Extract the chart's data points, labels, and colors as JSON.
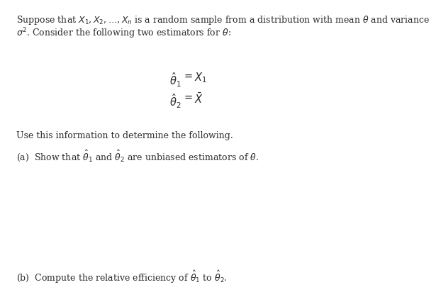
{
  "bg_color": "#ffffff",
  "text_color": "#2a2a2a",
  "figsize": [
    6.15,
    4.19
  ],
  "dpi": 100,
  "line1": "Suppose that $X_1, X_2, \\ldots, X_n$ is a random sample from a distribution with mean $\\theta$ and variance",
  "line2": "$\\sigma^2$. Consider the following two estimators for $\\theta$:",
  "eq1_left": "$\\hat{\\theta}_1$",
  "eq1_mid": "$=$",
  "eq1_right": "$X_1$",
  "eq2_left": "$\\hat{\\theta}_2$",
  "eq2_mid": "$=$",
  "eq2_right": "$\\bar{X}$",
  "use_line": "Use this information to determine the following.",
  "part_a": "(a)  Show that $\\hat{\\theta}_1$ and $\\hat{\\theta}_2$ are unbiased estimators of $\\theta$.",
  "part_b": "(b)  Compute the relative efficiency of $\\hat{\\theta}_1$ to $\\hat{\\theta}_2$.",
  "font_size_body": 9.0,
  "font_size_eq": 10.5
}
